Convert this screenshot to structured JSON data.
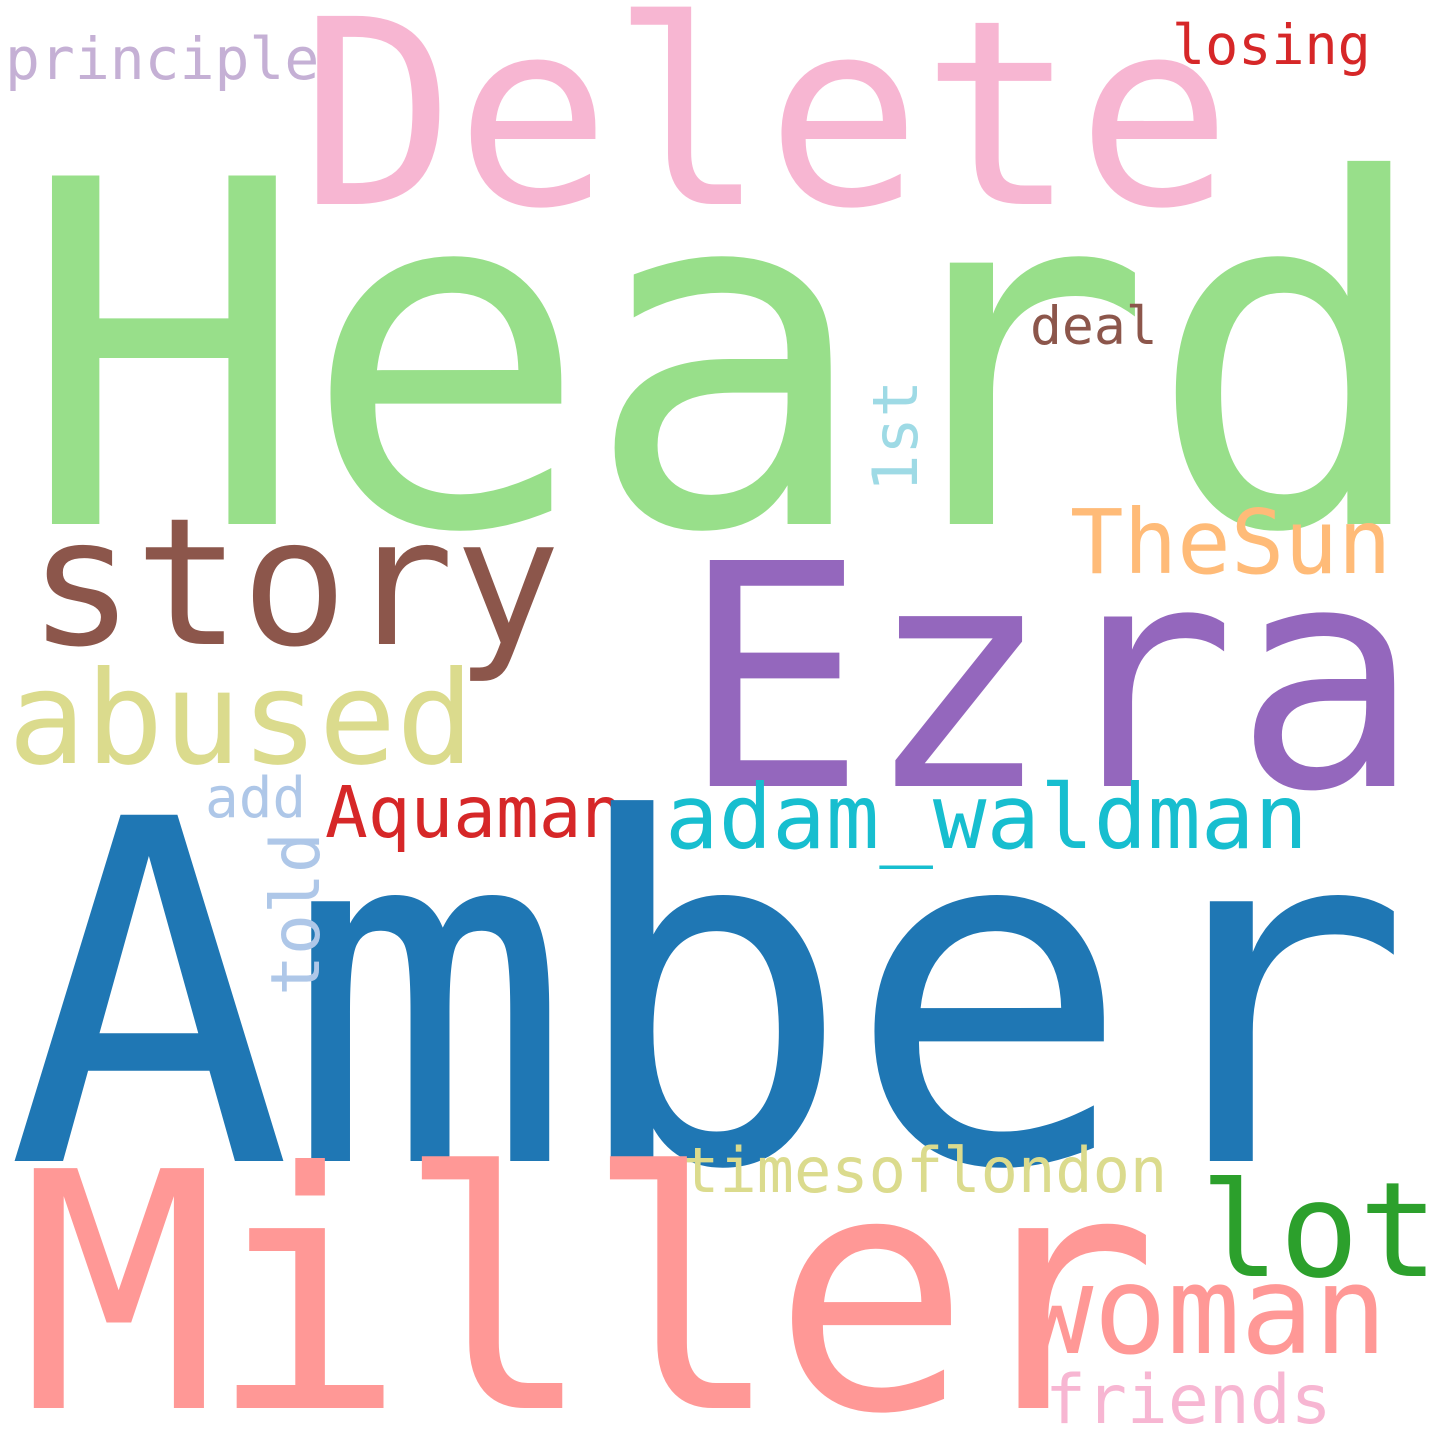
{
  "words": [
    {
      "text": "Heard",
      "color": "#98df8a"
    },
    {
      "text": "Delete",
      "color": "#f7b6d2"
    },
    {
      "text": "Amber",
      "color": "#1f77b4"
    },
    {
      "text": "Miller",
      "color": "#ff9896"
    },
    {
      "text": "Ezra",
      "color": "#9467bd"
    },
    {
      "text": "story",
      "color": "#8c564b"
    },
    {
      "text": "abused",
      "color": "#dbdb8d"
    },
    {
      "text": "TheSun",
      "color": "#ffbb78"
    },
    {
      "text": "adam_waldman",
      "color": "#17becf"
    },
    {
      "text": "Aquaman",
      "color": "#d62728"
    },
    {
      "text": "woman",
      "color": "#ff9896"
    },
    {
      "text": "lot",
      "color": "#2ca02c"
    },
    {
      "text": "timesoflondon",
      "color": "#dbdb8d"
    },
    {
      "text": "friends",
      "color": "#f7b6d2"
    },
    {
      "text": "losing",
      "color": "#d62728"
    },
    {
      "text": "principle",
      "color": "#c5b0d5"
    },
    {
      "text": "deal",
      "color": "#8c564b"
    },
    {
      "text": "1st",
      "color": "#9edae5"
    },
    {
      "text": "add",
      "color": "#aec7e8"
    },
    {
      "text": "told",
      "color": "#aec7e8"
    }
  ]
}
